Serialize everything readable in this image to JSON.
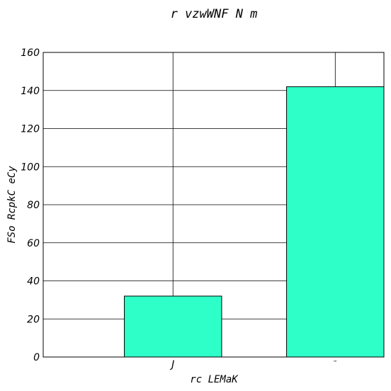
{
  "chart_data": {
    "type": "bar",
    "title": "r vzwWNF N  m",
    "xlabel": "rc LEMaK",
    "ylabel": "FSo RcpkC eCy",
    "categories": [
      "J",
      "ᴴᴵ"
    ],
    "values": [
      32,
      142
    ],
    "ylim": [
      0,
      160
    ],
    "yticks": [
      0,
      20,
      40,
      60,
      80,
      100,
      120,
      140,
      160
    ],
    "grid": true,
    "bar_color": "#2effc8"
  }
}
